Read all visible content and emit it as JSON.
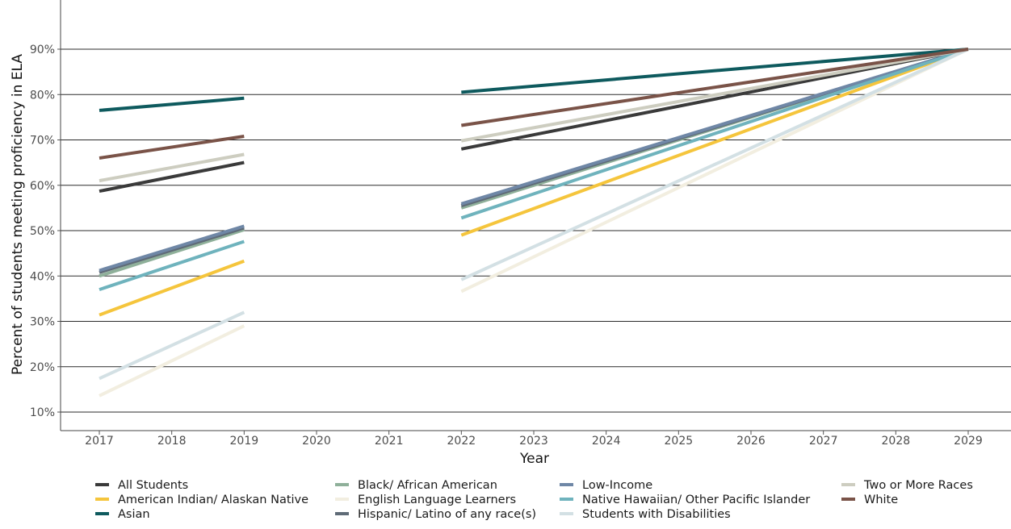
{
  "chart_data": {
    "type": "line",
    "title": "",
    "xlabel": "Year",
    "ylabel": "Percent of students meeting proficiency in ELA",
    "xlim": [
      2017,
      2029
    ],
    "ylim": [
      10,
      90
    ],
    "x_ticks": [
      "2017",
      "2018",
      "2019",
      "2020",
      "2021",
      "2022",
      "2023",
      "2024",
      "2025",
      "2026",
      "2027",
      "2028",
      "2029"
    ],
    "y_ticks": [
      "10%",
      "20%",
      "30%",
      "40%",
      "50%",
      "60%",
      "70%",
      "80%",
      "90%"
    ],
    "grid": "horizontal major gridlines",
    "legend_position": "bottom",
    "series": [
      {
        "name": "All Students",
        "color": "#3a3a3a",
        "segments": [
          {
            "x": [
              2017,
              2019
            ],
            "y": [
              58.7,
              65.0
            ]
          },
          {
            "x": [
              2022,
              2029
            ],
            "y": [
              68.0,
              90.0
            ]
          }
        ]
      },
      {
        "name": "American Indian/ Alaskan Native",
        "color": "#f5c53c",
        "segments": [
          {
            "x": [
              2017,
              2019
            ],
            "y": [
              31.4,
              43.3
            ]
          },
          {
            "x": [
              2022,
              2029
            ],
            "y": [
              49.0,
              90.0
            ]
          }
        ]
      },
      {
        "name": "Asian",
        "color": "#0e5a5e",
        "segments": [
          {
            "x": [
              2017,
              2019
            ],
            "y": [
              76.5,
              79.2
            ]
          },
          {
            "x": [
              2022,
              2029
            ],
            "y": [
              80.5,
              90.0
            ]
          }
        ]
      },
      {
        "name": "Black/ African American",
        "color": "#8fb09a",
        "segments": [
          {
            "x": [
              2017,
              2019
            ],
            "y": [
              40.0,
              50.2
            ]
          },
          {
            "x": [
              2022,
              2029
            ],
            "y": [
              55.0,
              90.0
            ]
          }
        ]
      },
      {
        "name": "English Language Learners",
        "color": "#f2eee0",
        "segments": [
          {
            "x": [
              2017,
              2019
            ],
            "y": [
              13.6,
              29.0
            ]
          },
          {
            "x": [
              2022,
              2029
            ],
            "y": [
              36.6,
              90.0
            ]
          }
        ]
      },
      {
        "name": "Hispanic/ Latino of any race(s)",
        "color": "#5f6b77",
        "segments": [
          {
            "x": [
              2017,
              2019
            ],
            "y": [
              40.8,
              50.6
            ]
          },
          {
            "x": [
              2022,
              2029
            ],
            "y": [
              55.5,
              90.0
            ]
          }
        ]
      },
      {
        "name": "Low-Income",
        "color": "#6f87a6",
        "segments": [
          {
            "x": [
              2017,
              2019
            ],
            "y": [
              41.2,
              51.0
            ]
          },
          {
            "x": [
              2022,
              2029
            ],
            "y": [
              55.9,
              90.0
            ]
          }
        ]
      },
      {
        "name": "Native Hawaiian/ Other Pacific Islander",
        "color": "#6fb3bd",
        "segments": [
          {
            "x": [
              2017,
              2019
            ],
            "y": [
              37.0,
              47.6
            ]
          },
          {
            "x": [
              2022,
              2029
            ],
            "y": [
              52.8,
              90.0
            ]
          }
        ]
      },
      {
        "name": "Students with Disabilities",
        "color": "#d3e0e4",
        "segments": [
          {
            "x": [
              2017,
              2019
            ],
            "y": [
              17.4,
              32.0
            ]
          },
          {
            "x": [
              2022,
              2029
            ],
            "y": [
              39.2,
              90.0
            ]
          }
        ]
      },
      {
        "name": "Two or More Races",
        "color": "#cdcdc0",
        "segments": [
          {
            "x": [
              2017,
              2019
            ],
            "y": [
              61.0,
              66.8
            ]
          },
          {
            "x": [
              2022,
              2029
            ],
            "y": [
              69.8,
              90.0
            ]
          }
        ]
      },
      {
        "name": "White",
        "color": "#7a5348",
        "segments": [
          {
            "x": [
              2017,
              2019
            ],
            "y": [
              66.0,
              70.8
            ]
          },
          {
            "x": [
              2022,
              2029
            ],
            "y": [
              73.2,
              90.0
            ]
          }
        ]
      }
    ],
    "legend_layout": [
      [
        "All Students",
        "American Indian/ Alaskan Native",
        "Asian"
      ],
      [
        "Black/ African American",
        "English Language Learners",
        "Hispanic/ Latino of any race(s)"
      ],
      [
        "Low-Income",
        "Native Hawaiian/ Other Pacific Islander",
        "Students with Disabilities"
      ],
      [
        "Two or More Races",
        "White"
      ]
    ]
  }
}
